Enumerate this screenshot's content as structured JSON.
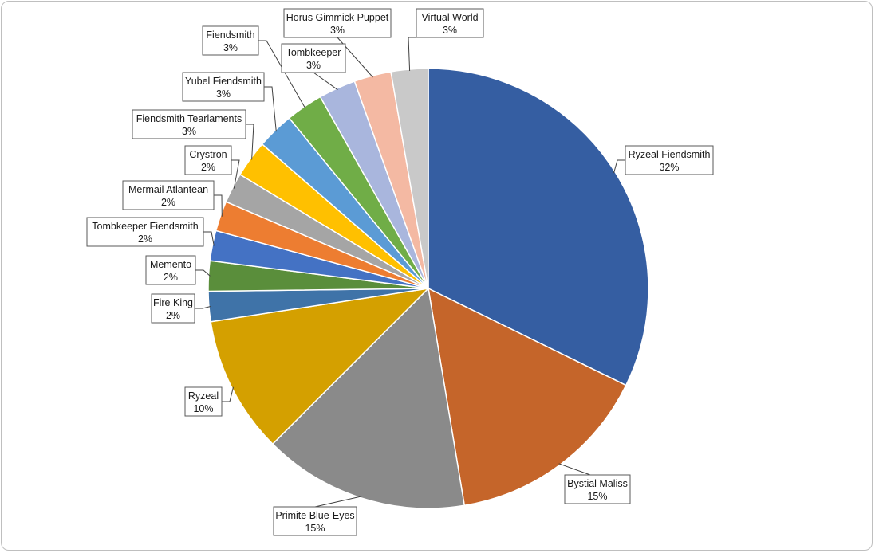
{
  "chart_data": {
    "type": "pie",
    "start_angle_deg": 0,
    "direction": "clockwise",
    "slices": [
      {
        "label": "Ryzeal Fiendsmith",
        "value": 32,
        "pct_label": "32%",
        "color": "#355EA2"
      },
      {
        "label": "Bystial Maliss",
        "value": 15,
        "pct_label": "15%",
        "color": "#C5652A"
      },
      {
        "label": "Primite Blue-Eyes",
        "value": 15,
        "pct_label": "15%",
        "color": "#8A8A8A"
      },
      {
        "label": "Ryzeal",
        "value": 10,
        "pct_label": "10%",
        "color": "#D4A000"
      },
      {
        "label": "Fire King",
        "value": 2.2,
        "pct_label": "2%",
        "color": "#3F73A8"
      },
      {
        "label": "Memento",
        "value": 2.2,
        "pct_label": "2%",
        "color": "#5A8E3B"
      },
      {
        "label": "Tombkeeper Fiendsmith",
        "value": 2.2,
        "pct_label": "2%",
        "color": "#4472C4"
      },
      {
        "label": "Mermail Atlantean",
        "value": 2.2,
        "pct_label": "2%",
        "color": "#ED7D31"
      },
      {
        "label": "Crystron",
        "value": 2.2,
        "pct_label": "2%",
        "color": "#A5A5A5"
      },
      {
        "label": "Fiendsmith Tearlaments",
        "value": 2.7,
        "pct_label": "3%",
        "color": "#FFC000"
      },
      {
        "label": "Yubel Fiendsmith",
        "value": 2.7,
        "pct_label": "3%",
        "color": "#5B9BD5"
      },
      {
        "label": "Fiendsmith",
        "value": 2.7,
        "pct_label": "3%",
        "color": "#70AD47"
      },
      {
        "label": "Tombkeeper",
        "value": 2.7,
        "pct_label": "3%",
        "color": "#A9B6DD"
      },
      {
        "label": "Horus Gimmick Puppet",
        "value": 2.7,
        "pct_label": "3%",
        "color": "#F4B9A3"
      },
      {
        "label": "Virtual World",
        "value": 2.7,
        "pct_label": "3%",
        "color": "#C9C9C9"
      }
    ]
  }
}
